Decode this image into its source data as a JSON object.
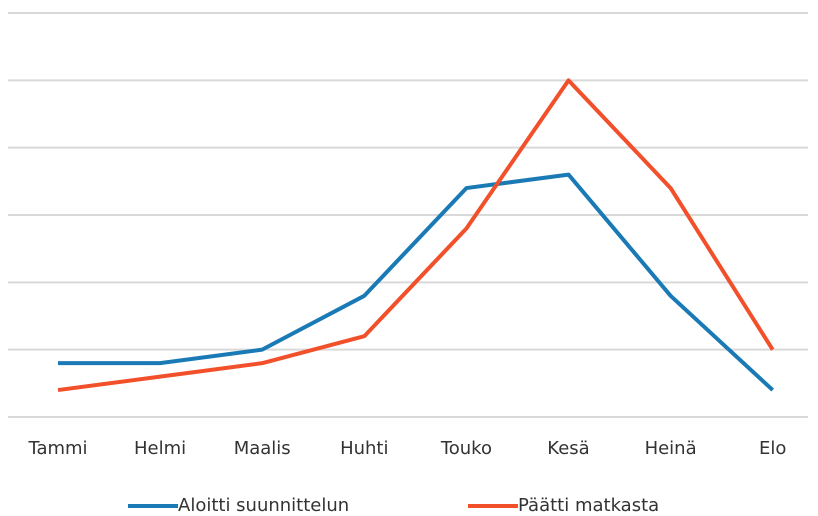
{
  "chart_data": {
    "type": "line",
    "categories": [
      "Tammi",
      "Helmi",
      "Maalis",
      "Huhti",
      "Touko",
      "Kesä",
      "Heinä",
      "Elo"
    ],
    "series": [
      {
        "name": "Aloitti suunnittelun",
        "color": "#1a7ab5",
        "values": [
          0.8,
          0.8,
          1.0,
          1.8,
          3.4,
          3.6,
          1.8,
          0.4
        ]
      },
      {
        "name": "Päätti matkasta",
        "color": "#f2502a",
        "values": [
          0.4,
          0.6,
          0.8,
          1.2,
          2.8,
          5.0,
          3.4,
          1.0
        ]
      }
    ],
    "ylim": [
      0,
      6
    ],
    "yticks": [
      0,
      1,
      2,
      3,
      4,
      5,
      6
    ],
    "grid": true,
    "legend": "bottom"
  }
}
